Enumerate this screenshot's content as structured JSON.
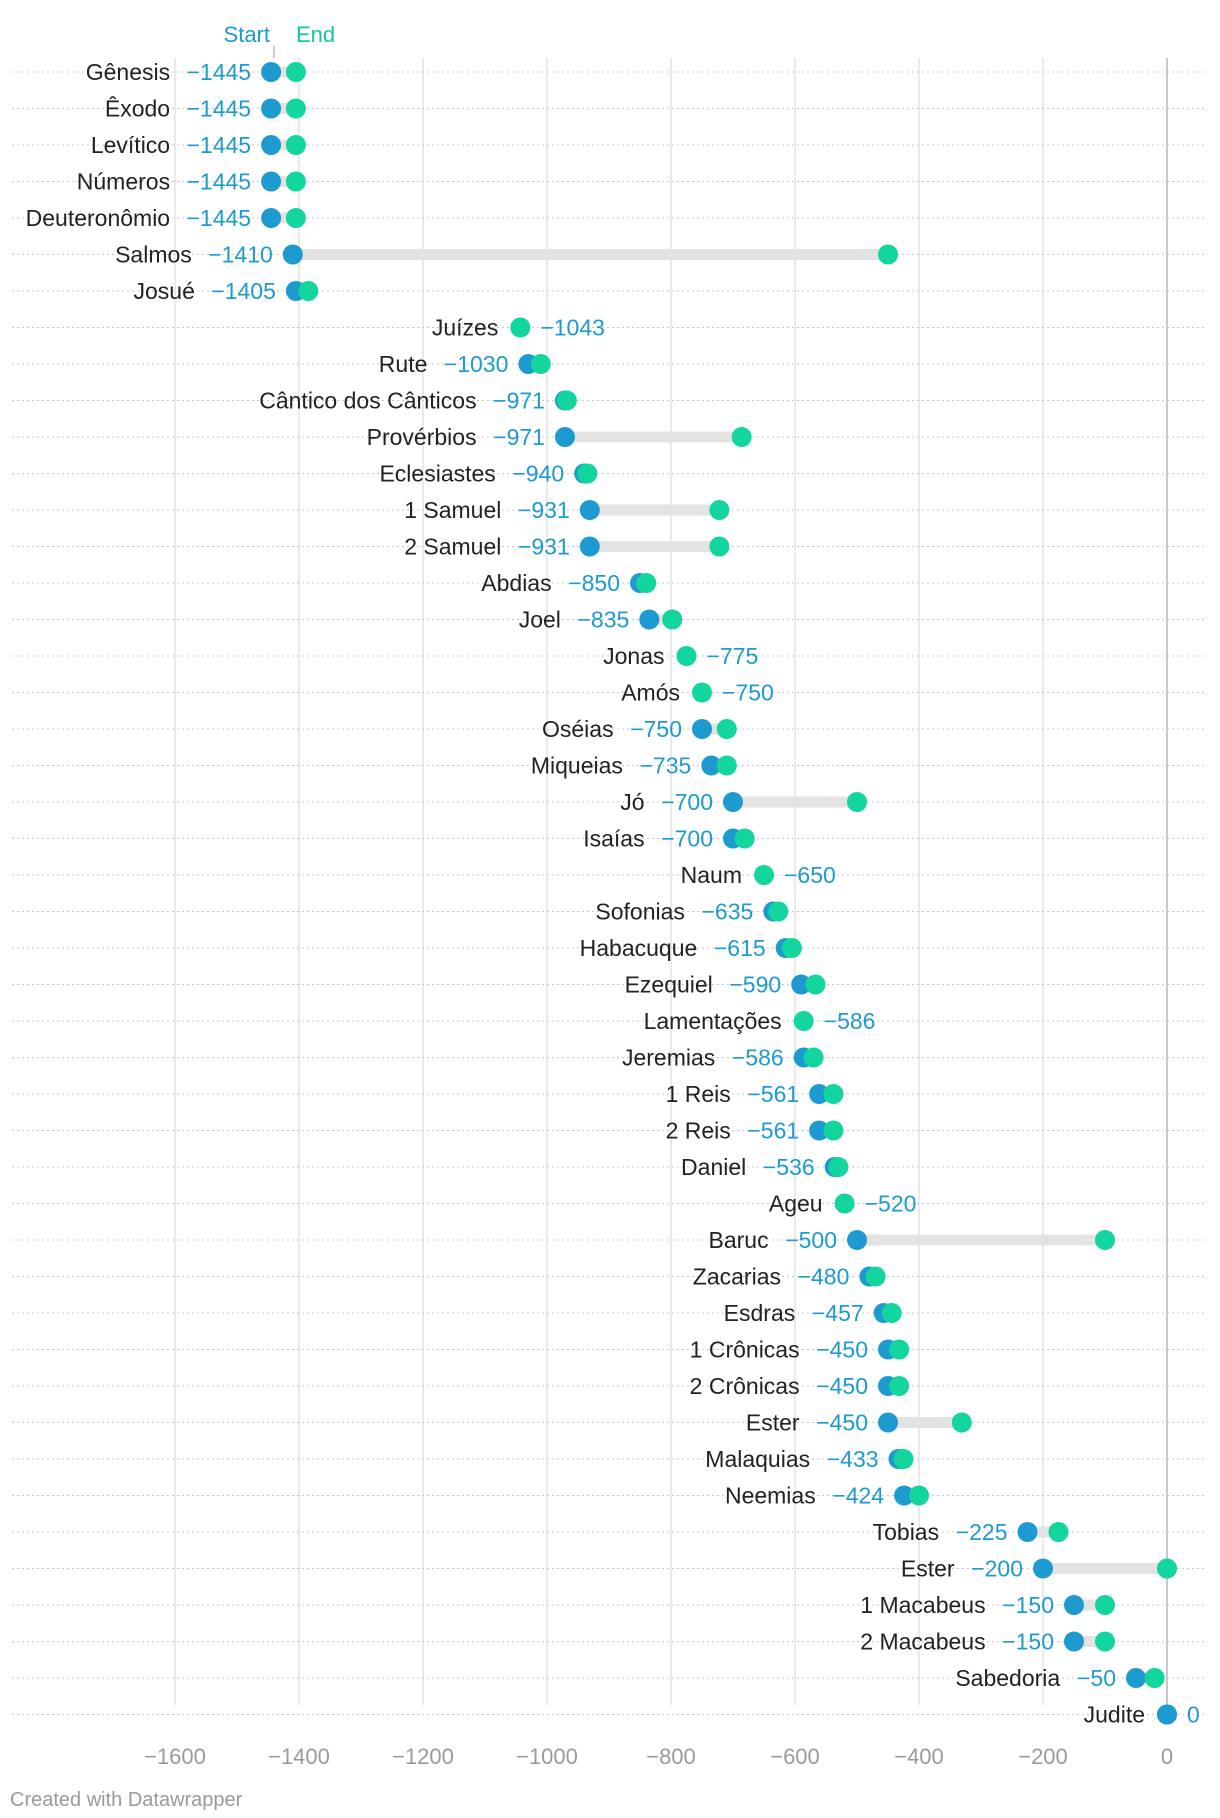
{
  "chart_data": {
    "type": "dot-range",
    "legend": {
      "start_label": "Start",
      "end_label": "End"
    },
    "xlim": [
      -1600,
      0
    ],
    "x_ticks": [
      -1600,
      -1400,
      -1200,
      -1000,
      -800,
      -600,
      -400,
      -200,
      0
    ],
    "x_tick_labels": [
      "−1600",
      "−1400",
      "−1200",
      "−1000",
      "−800",
      "−600",
      "−400",
      "−200",
      "0"
    ],
    "colors": {
      "start": "#1d9bd1",
      "end": "#12d69d",
      "range": "#e3e3e3",
      "gridline": "#dddddd",
      "zero_line": "#bbbbbb",
      "row_line": "#c8c8c8"
    },
    "rows": [
      {
        "name": "Gênesis",
        "start": -1445,
        "end": -1405,
        "label": "−1445"
      },
      {
        "name": "Êxodo",
        "start": -1445,
        "end": -1405,
        "label": "−1445"
      },
      {
        "name": "Levítico",
        "start": -1445,
        "end": -1405,
        "label": "−1445"
      },
      {
        "name": "Números",
        "start": -1445,
        "end": -1405,
        "label": "−1445"
      },
      {
        "name": "Deuteronômio",
        "start": -1445,
        "end": -1405,
        "label": "−1445"
      },
      {
        "name": "Salmos",
        "start": -1410,
        "end": -450,
        "label": "−1410"
      },
      {
        "name": "Josué",
        "start": -1405,
        "end": -1385,
        "label": "−1405"
      },
      {
        "name": "Juízes",
        "start": -1043,
        "end": -1043,
        "label": "−1043"
      },
      {
        "name": "Rute",
        "start": -1030,
        "end": -1010,
        "label": "−1030"
      },
      {
        "name": "Cântico dos Cânticos",
        "start": -971,
        "end": -968,
        "label": "−971"
      },
      {
        "name": "Provérbios",
        "start": -971,
        "end": -686,
        "label": "−971"
      },
      {
        "name": "Eclesiastes",
        "start": -940,
        "end": -935,
        "label": "−940"
      },
      {
        "name": "1 Samuel",
        "start": -931,
        "end": -722,
        "label": "−931"
      },
      {
        "name": "2 Samuel",
        "start": -931,
        "end": -722,
        "label": "−931"
      },
      {
        "name": "Abdias",
        "start": -850,
        "end": -840,
        "label": "−850"
      },
      {
        "name": "Joel",
        "start": -835,
        "end": -798,
        "label": "−835"
      },
      {
        "name": "Jonas",
        "start": -775,
        "end": -775,
        "label": "−775"
      },
      {
        "name": "Amós",
        "start": -750,
        "end": -750,
        "label": "−750"
      },
      {
        "name": "Oséias",
        "start": -750,
        "end": -710,
        "label": "−750"
      },
      {
        "name": "Miqueias",
        "start": -735,
        "end": -710,
        "label": "−735"
      },
      {
        "name": "Jó",
        "start": -700,
        "end": -500,
        "label": "−700"
      },
      {
        "name": "Isaías",
        "start": -700,
        "end": -681,
        "label": "−700"
      },
      {
        "name": "Naum",
        "start": -650,
        "end": -650,
        "label": "−650"
      },
      {
        "name": "Sofonias",
        "start": -635,
        "end": -627,
        "label": "−635"
      },
      {
        "name": "Habacuque",
        "start": -615,
        "end": -605,
        "label": "−615"
      },
      {
        "name": "Ezequiel",
        "start": -590,
        "end": -567,
        "label": "−590"
      },
      {
        "name": "Lamentações",
        "start": -586,
        "end": -586,
        "label": "−586"
      },
      {
        "name": "Jeremias",
        "start": -586,
        "end": -570,
        "label": "−586"
      },
      {
        "name": "1 Reis",
        "start": -561,
        "end": -538,
        "label": "−561"
      },
      {
        "name": "2 Reis",
        "start": -561,
        "end": -538,
        "label": "−561"
      },
      {
        "name": "Daniel",
        "start": -536,
        "end": -530,
        "label": "−536"
      },
      {
        "name": "Ageu",
        "start": -520,
        "end": -520,
        "label": "−520"
      },
      {
        "name": "Baruc",
        "start": -500,
        "end": -100,
        "label": "−500"
      },
      {
        "name": "Zacarias",
        "start": -480,
        "end": -470,
        "label": "−480"
      },
      {
        "name": "Esdras",
        "start": -457,
        "end": -444,
        "label": "−457"
      },
      {
        "name": "1 Crônicas",
        "start": -450,
        "end": -432,
        "label": "−450"
      },
      {
        "name": "2 Crônicas",
        "start": -450,
        "end": -432,
        "label": "−450"
      },
      {
        "name": "Ester",
        "start": -450,
        "end": -331,
        "label": "−450"
      },
      {
        "name": "Malaquias",
        "start": -433,
        "end": -425,
        "label": "−433"
      },
      {
        "name": "Neemias",
        "start": -424,
        "end": -400,
        "label": "−424"
      },
      {
        "name": "Tobias",
        "start": -225,
        "end": -175,
        "label": "−225"
      },
      {
        "name": "Ester",
        "start": -200,
        "end": 0,
        "label": "−200"
      },
      {
        "name": "1 Macabeus",
        "start": -150,
        "end": -100,
        "label": "−150"
      },
      {
        "name": "2 Macabeus",
        "start": -150,
        "end": -100,
        "label": "−150"
      },
      {
        "name": "Sabedoria",
        "start": -50,
        "end": -20,
        "label": "−50"
      },
      {
        "name": "Judite",
        "start": 0,
        "end": 0,
        "label": "0"
      }
    ]
  },
  "footer": {
    "credit": "Created with Datawrapper"
  }
}
